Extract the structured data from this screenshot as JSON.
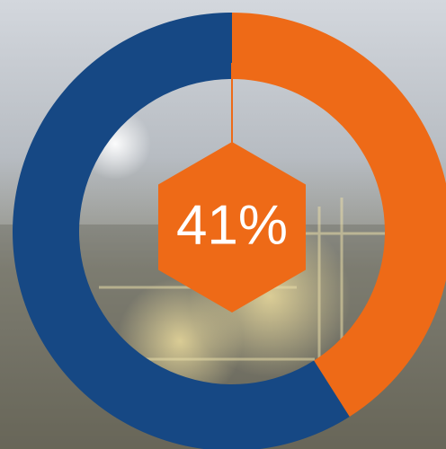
{
  "chart_data": {
    "type": "donut",
    "values": [
      41,
      59
    ],
    "value_labels": [
      "41%",
      null
    ],
    "colors": [
      "#ee6a17",
      "#164884"
    ]
  }
}
